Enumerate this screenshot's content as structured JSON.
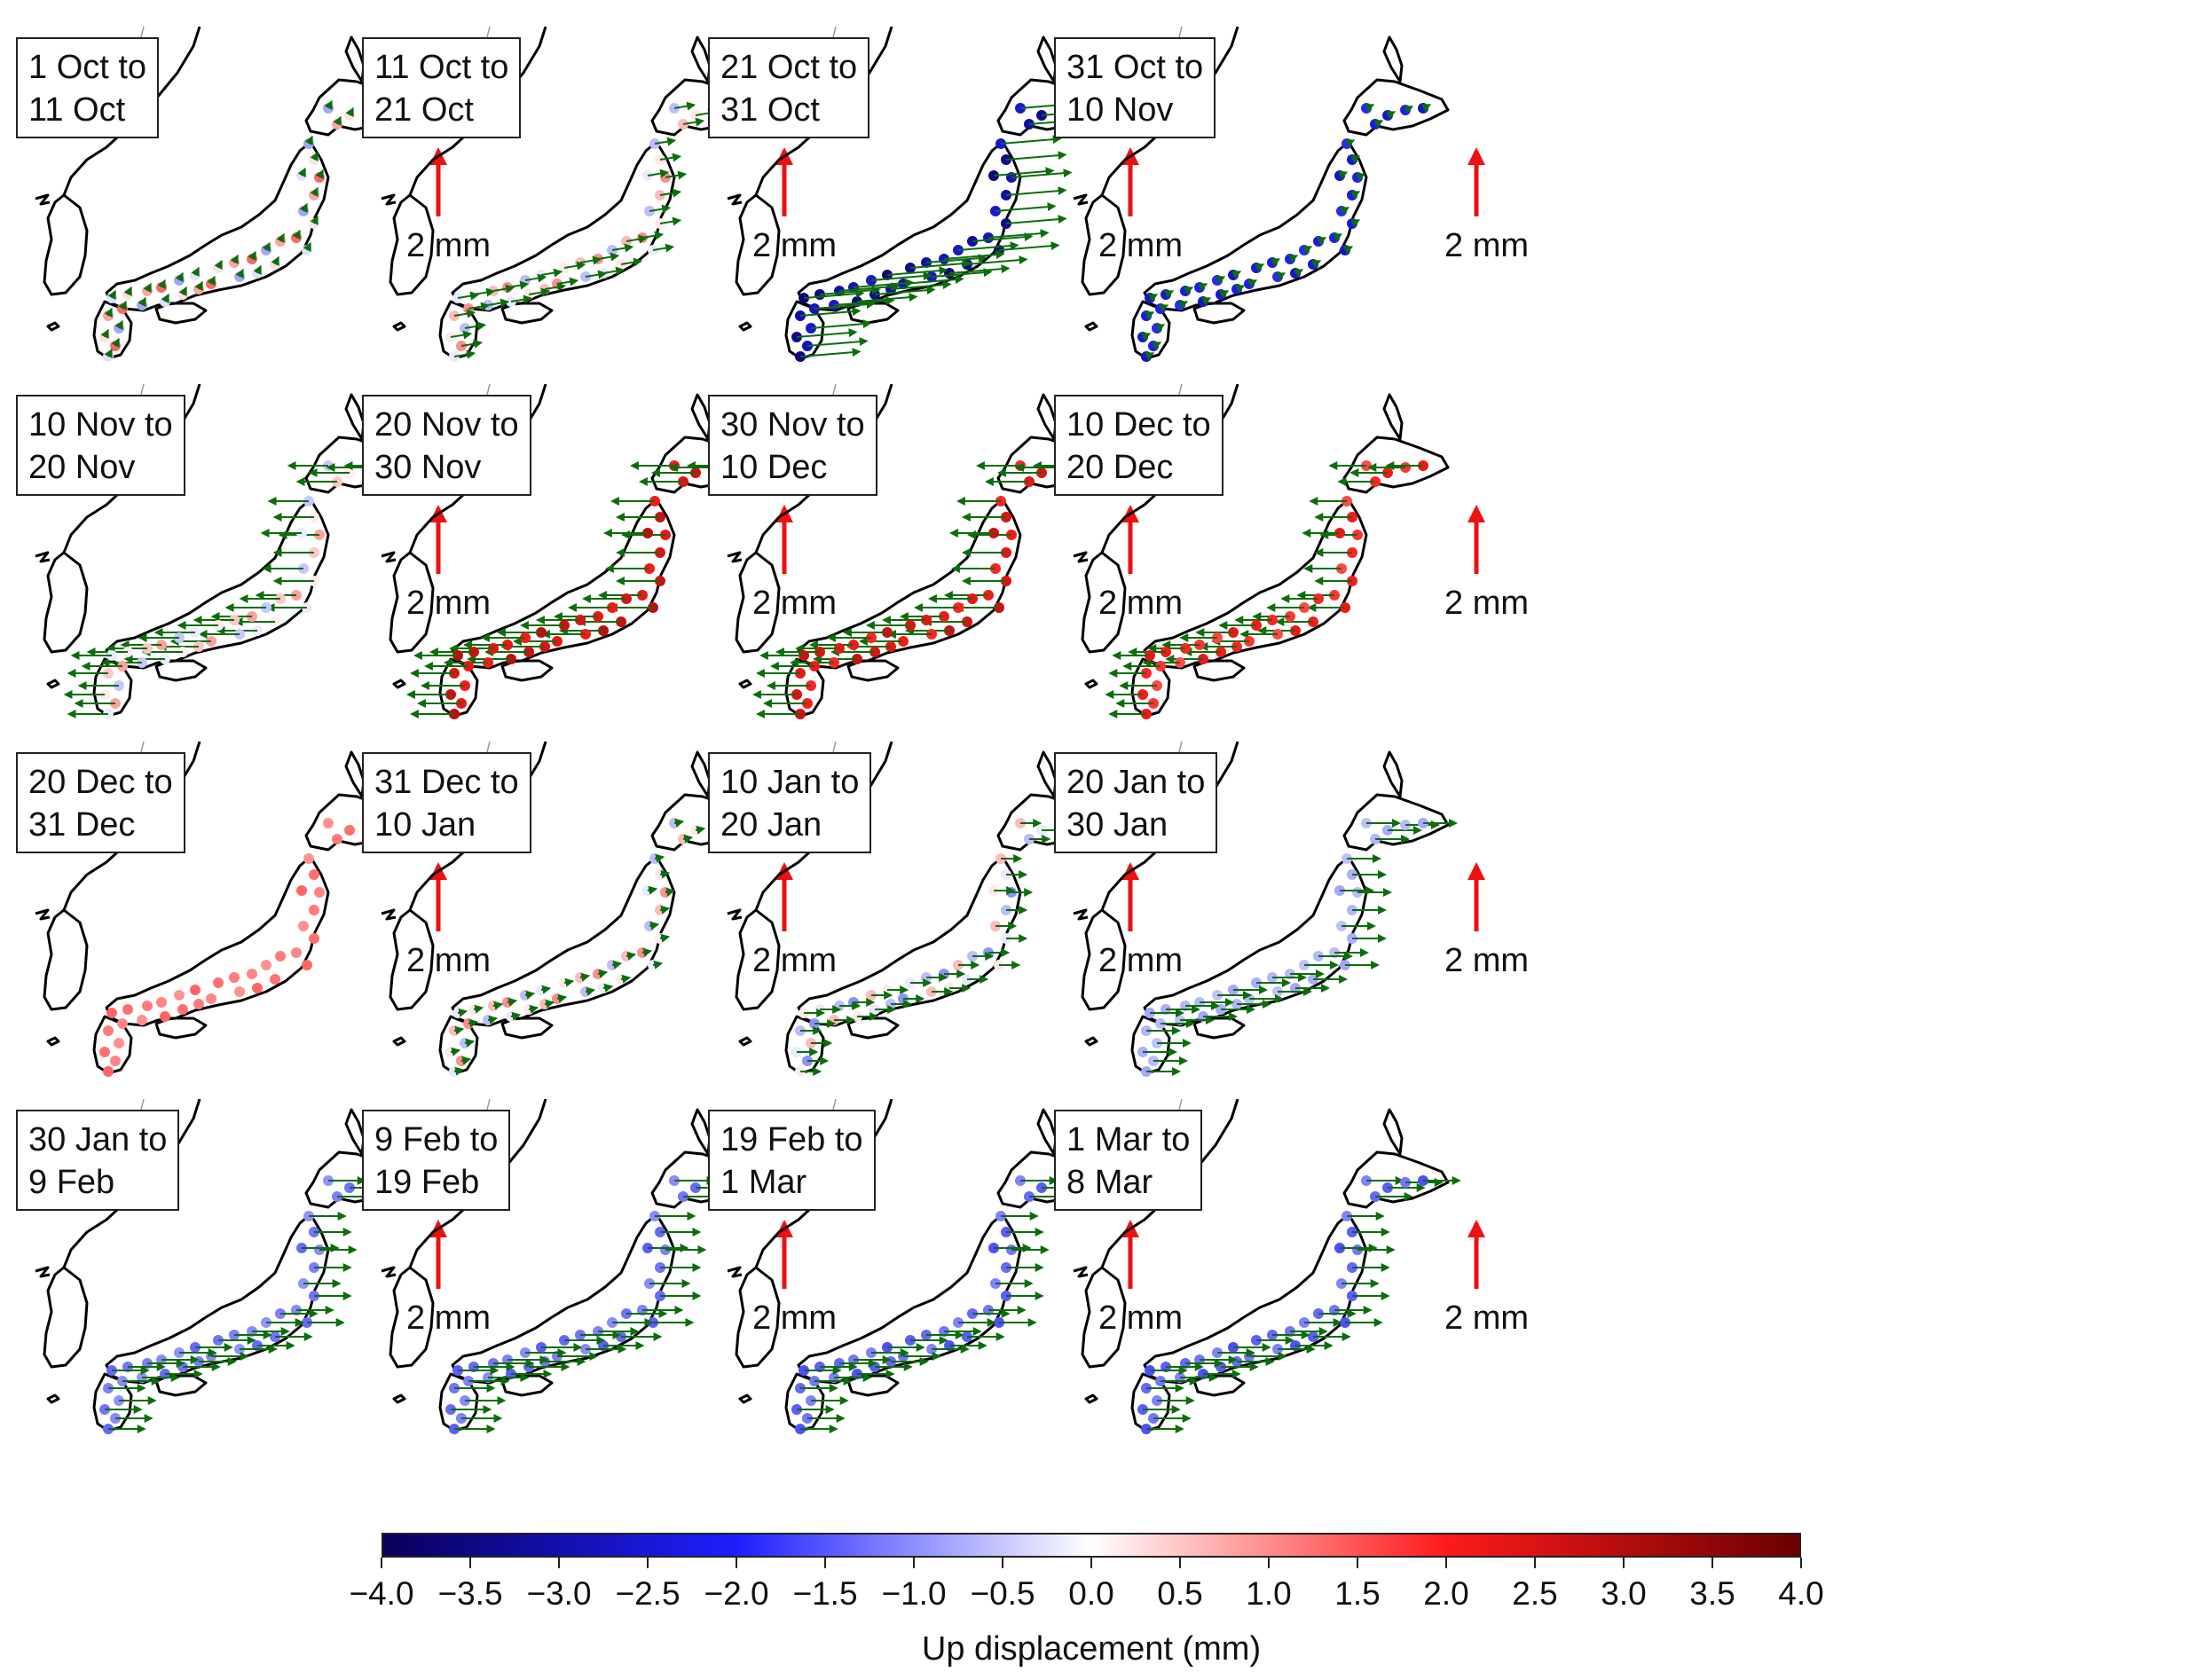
{
  "panels": [
    {
      "line1": "1 Oct to",
      "line2": "11 Oct",
      "scale_label": "2 mm",
      "up_mm": 0.8,
      "east_mm": 0.1,
      "north_mm": 0.2,
      "vertical_pattern": "mixed"
    },
    {
      "line1": "11 Oct to",
      "line2": "21 Oct",
      "scale_label": "2 mm",
      "up_mm": 0.6,
      "east_mm": 0.6,
      "north_mm": 0.1,
      "vertical_pattern": "mixed"
    },
    {
      "line1": "21 Oct to",
      "line2": "31 Oct",
      "scale_label": "2 mm",
      "up_mm": -3.2,
      "east_mm": 1.8,
      "north_mm": 0.15,
      "vertical_pattern": "uniform"
    },
    {
      "line1": "31 Oct to",
      "line2": "10 Nov",
      "scale_label": "2 mm",
      "up_mm": -2.4,
      "east_mm": 0.2,
      "north_mm": 0.1,
      "vertical_pattern": "uniform"
    },
    {
      "line1": "10 Nov to",
      "line2": "20 Nov",
      "scale_label": "2 mm",
      "up_mm": 0.5,
      "east_mm": -1.2,
      "north_mm": 0.0,
      "vertical_pattern": "mixed"
    },
    {
      "line1": "20 Nov to",
      "line2": "30 Nov",
      "scale_label": "2 mm",
      "up_mm": 2.6,
      "east_mm": -1.3,
      "north_mm": 0.0,
      "vertical_pattern": "uniform"
    },
    {
      "line1": "30 Nov to",
      "line2": "10 Dec",
      "scale_label": "2 mm",
      "up_mm": 2.4,
      "east_mm": -1.3,
      "north_mm": 0.0,
      "vertical_pattern": "uniform"
    },
    {
      "line1": "10 Dec to",
      "line2": "20 Dec",
      "scale_label": "2 mm",
      "up_mm": 2.0,
      "east_mm": -1.1,
      "north_mm": 0.0,
      "vertical_pattern": "uniform"
    },
    {
      "line1": "20 Dec to",
      "line2": "31 Dec",
      "scale_label": "2 mm",
      "up_mm": 1.2,
      "east_mm": 0.05,
      "north_mm": 0.0,
      "vertical_pattern": "uniform"
    },
    {
      "line1": "31 Dec to",
      "line2": "10 Jan",
      "scale_label": "2 mm",
      "up_mm": 0.6,
      "east_mm": 0.25,
      "north_mm": 0.05,
      "vertical_pattern": "mixed"
    },
    {
      "line1": "10 Jan to",
      "line2": "20 Jan",
      "scale_label": "2 mm",
      "up_mm": -0.6,
      "east_mm": 0.6,
      "north_mm": 0.0,
      "vertical_pattern": "mixed"
    },
    {
      "line1": "20 Jan to",
      "line2": "30 Jan",
      "scale_label": "2 mm",
      "up_mm": -0.7,
      "east_mm": 1.0,
      "north_mm": 0.0,
      "vertical_pattern": "uniform"
    },
    {
      "line1": "30 Jan to",
      "line2": "9 Feb",
      "scale_label": "2 mm",
      "up_mm": -1.2,
      "east_mm": 1.1,
      "north_mm": 0.0,
      "vertical_pattern": "uniform"
    },
    {
      "line1": "9 Feb to",
      "line2": "19 Feb",
      "scale_label": "2 mm",
      "up_mm": -1.3,
      "east_mm": 1.2,
      "north_mm": 0.0,
      "vertical_pattern": "uniform"
    },
    {
      "line1": "19 Feb to",
      "line2": "1 Mar",
      "scale_label": "2 mm",
      "up_mm": -1.4,
      "east_mm": 1.1,
      "north_mm": 0.0,
      "vertical_pattern": "uniform"
    },
    {
      "line1": "1 Mar to",
      "line2": "8 Mar",
      "scale_label": "2 mm",
      "up_mm": -1.4,
      "east_mm": 1.1,
      "north_mm": 0.0,
      "vertical_pattern": "uniform"
    }
  ],
  "colorbar": {
    "title": "Up displacement (mm)",
    "min": -4.0,
    "max": 4.0,
    "ticks": [
      "−4.0",
      "−3.5",
      "−3.0",
      "−2.5",
      "−2.0",
      "−1.5",
      "−1.0",
      "−0.5",
      "0.0",
      "0.5",
      "1.0",
      "1.5",
      "2.0",
      "2.5",
      "3.0",
      "3.5",
      "4.0"
    ],
    "colors": {
      "neg_max": "#08005a",
      "neg_mid": "#1f1fff",
      "zero": "#ffffff",
      "pos_mid": "#ff1a1a",
      "pos_max": "#6b0000"
    }
  },
  "colors": {
    "arrow": "#0b6e0b",
    "scale_arrow": "#ee1111",
    "coast": "#000000",
    "border": "#999999"
  }
}
